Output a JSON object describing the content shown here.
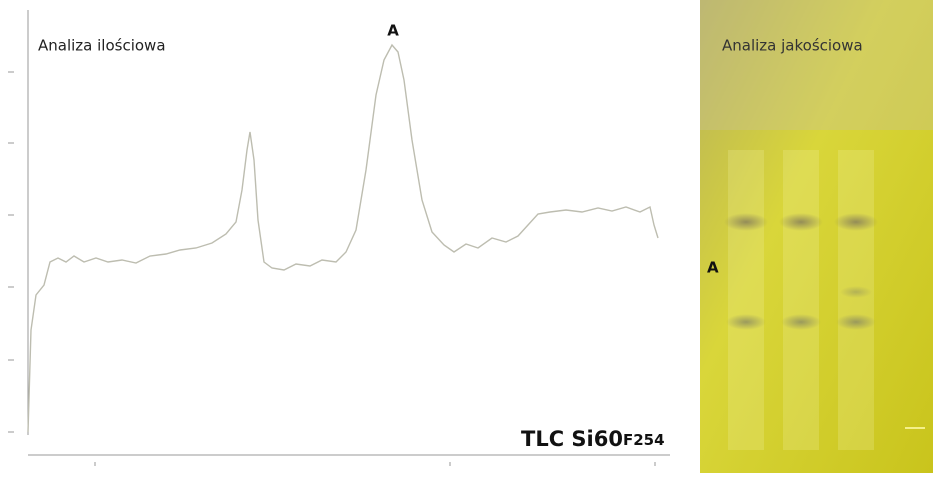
{
  "left_panel": {
    "title": "Analiza ilościowa",
    "peak_label": "A",
    "plate": {
      "main": "TLC Si60",
      "sub": "F254"
    }
  },
  "right_panel": {
    "title": "Analiza jakościowa",
    "zone_label": "A"
  }
}
